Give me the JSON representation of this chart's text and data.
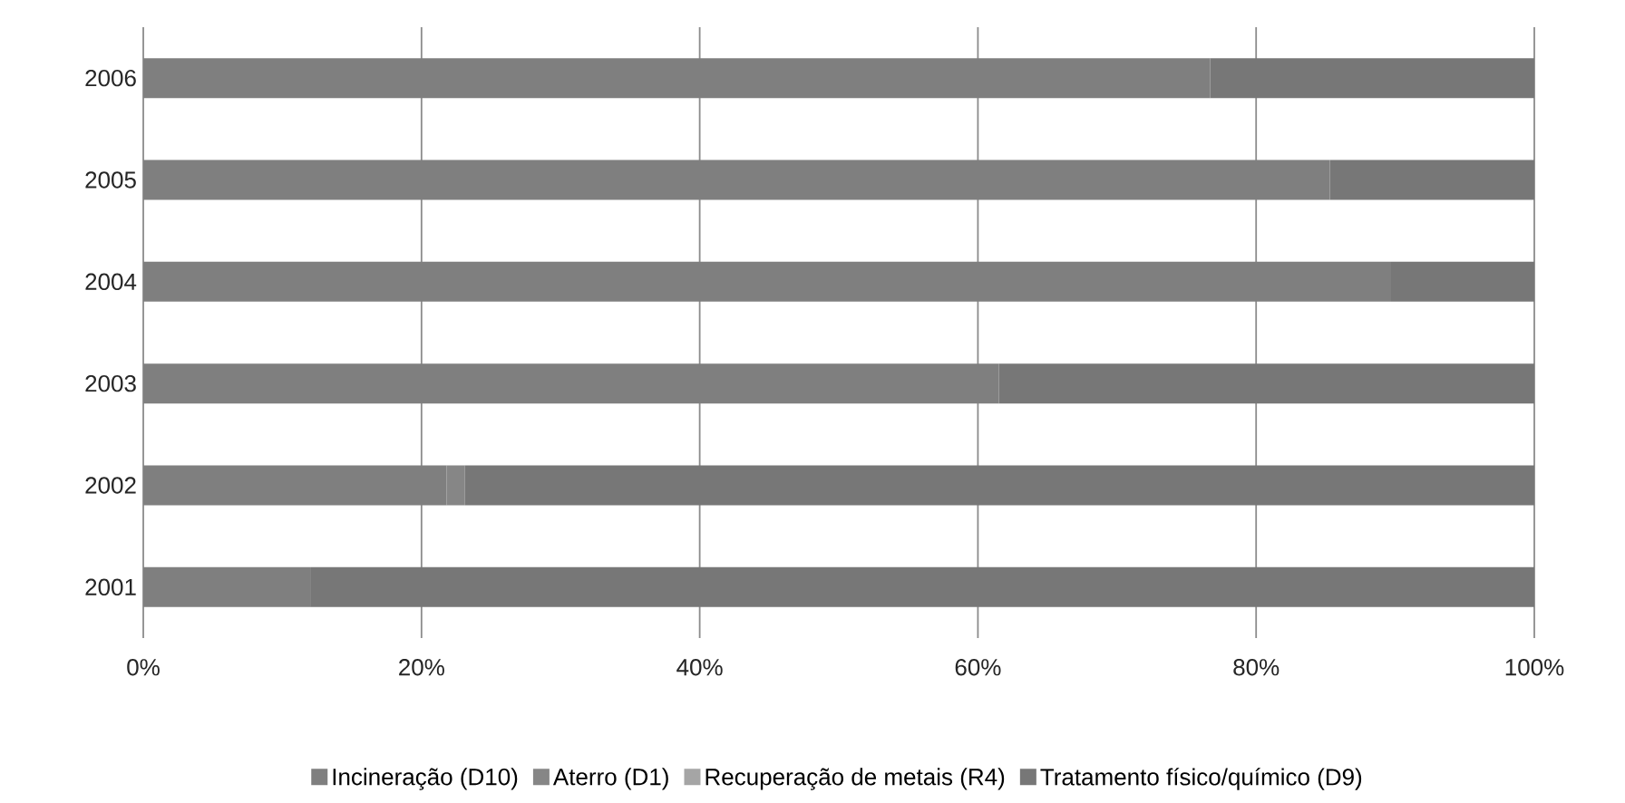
{
  "chart_data": {
    "type": "bar",
    "orientation": "horizontal",
    "stacked": true,
    "categories": [
      "2006",
      "2005",
      "2004",
      "2003",
      "2002",
      "2001"
    ],
    "series": [
      {
        "name": "Incineração (D10)",
        "color": "#7f7f7f",
        "values": [
          76.7,
          85.3,
          89.7,
          61.5,
          21.8,
          12
        ]
      },
      {
        "name": "Aterro (D1)",
        "color": "#868686",
        "values": [
          0,
          0,
          0,
          0,
          1.3,
          0
        ]
      },
      {
        "name": "Recuperação de metais (R4)",
        "color": "#a5a5a5",
        "values": [
          0,
          0,
          0,
          0,
          0,
          0
        ]
      },
      {
        "name": "Tratamento físico/químico (D9)",
        "color": "#777777",
        "values": [
          23.3,
          14.7,
          10.3,
          38.5,
          76.9,
          88
        ]
      }
    ],
    "xlim": [
      0,
      100
    ],
    "xticks": [
      {
        "value": 0,
        "label": "0%"
      },
      {
        "value": 20,
        "label": "20%"
      },
      {
        "value": 40,
        "label": "40%"
      },
      {
        "value": 60,
        "label": "60%"
      },
      {
        "value": 80,
        "label": "80%"
      },
      {
        "value": 100,
        "label": "100%"
      }
    ],
    "grid": "x",
    "legend": "bottom"
  }
}
